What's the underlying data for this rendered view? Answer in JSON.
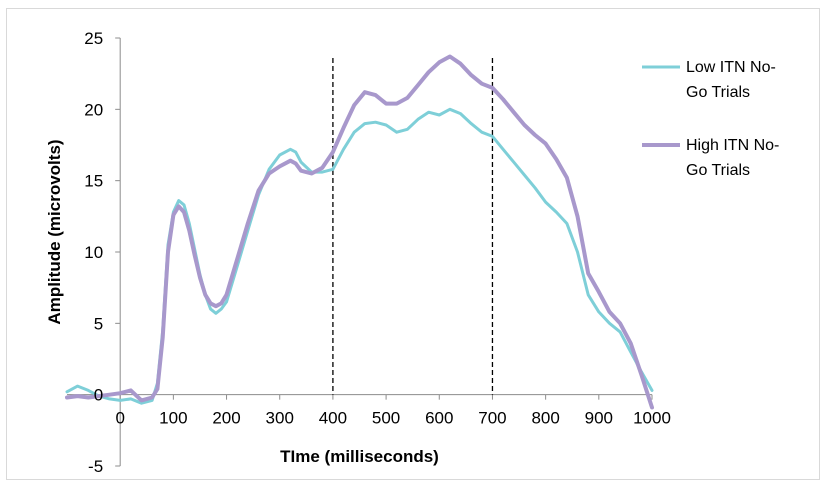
{
  "chart_data": {
    "type": "line",
    "title": "",
    "xlabel": "TIme (milliseconds)",
    "ylabel": "Amplitude (microvolts)",
    "xlim": [
      -100,
      1000
    ],
    "ylim": [
      -5,
      25
    ],
    "x_ticks": [
      0,
      100,
      200,
      300,
      400,
      500,
      600,
      700,
      800,
      900,
      1000
    ],
    "y_ticks": [
      -5,
      0,
      5,
      10,
      15,
      20,
      25
    ],
    "grid": false,
    "legend_position": "right",
    "vertical_markers": [
      400,
      700
    ],
    "series": [
      {
        "name": "Low ITN No-Go Trials",
        "color": "#7ecfd8",
        "x": [
          -100,
          -80,
          -60,
          -40,
          -20,
          0,
          20,
          40,
          60,
          70,
          80,
          90,
          100,
          110,
          120,
          130,
          140,
          150,
          160,
          170,
          180,
          190,
          200,
          220,
          240,
          260,
          280,
          300,
          320,
          330,
          340,
          360,
          380,
          400,
          420,
          440,
          460,
          480,
          500,
          520,
          540,
          560,
          580,
          600,
          620,
          640,
          660,
          680,
          700,
          720,
          740,
          760,
          780,
          800,
          820,
          840,
          860,
          880,
          900,
          920,
          940,
          960,
          980,
          1000
        ],
        "values": [
          0.2,
          0.6,
          0.3,
          -0.1,
          -0.3,
          -0.4,
          -0.3,
          -0.6,
          -0.4,
          0.8,
          4.5,
          10.5,
          12.8,
          13.6,
          13.3,
          12.0,
          10.2,
          8.4,
          7.0,
          6.0,
          5.7,
          6.0,
          6.5,
          9.0,
          11.5,
          14.0,
          15.8,
          16.8,
          17.2,
          17.0,
          16.3,
          15.6,
          15.6,
          15.8,
          17.2,
          18.4,
          19.0,
          19.1,
          18.9,
          18.4,
          18.6,
          19.3,
          19.8,
          19.6,
          20.0,
          19.7,
          19.0,
          18.4,
          18.1,
          17.2,
          16.3,
          15.4,
          14.5,
          13.5,
          12.8,
          12.0,
          10.0,
          7.0,
          5.8,
          5.0,
          4.4,
          3.0,
          1.6,
          0.3
        ]
      },
      {
        "name": "High ITN No-Go Trials",
        "color": "#a898cc",
        "x": [
          -100,
          -80,
          -60,
          -40,
          -20,
          0,
          20,
          40,
          60,
          70,
          80,
          90,
          100,
          110,
          120,
          130,
          140,
          150,
          160,
          170,
          180,
          190,
          200,
          220,
          240,
          260,
          280,
          300,
          320,
          330,
          340,
          360,
          380,
          400,
          420,
          440,
          460,
          480,
          500,
          520,
          540,
          560,
          580,
          600,
          620,
          640,
          660,
          680,
          700,
          720,
          740,
          760,
          780,
          800,
          820,
          840,
          860,
          880,
          900,
          920,
          940,
          960,
          980,
          1000
        ],
        "values": [
          -0.2,
          -0.1,
          -0.2,
          -0.1,
          0.0,
          0.1,
          0.3,
          -0.4,
          -0.2,
          0.4,
          4.0,
          10.0,
          12.6,
          13.2,
          12.8,
          11.5,
          9.8,
          8.2,
          7.0,
          6.4,
          6.2,
          6.4,
          7.0,
          9.5,
          12.0,
          14.3,
          15.5,
          16.0,
          16.4,
          16.2,
          15.7,
          15.5,
          15.9,
          17.0,
          18.7,
          20.3,
          21.2,
          21.0,
          20.4,
          20.4,
          20.8,
          21.7,
          22.6,
          23.3,
          23.7,
          23.2,
          22.4,
          21.8,
          21.5,
          20.7,
          19.8,
          18.9,
          18.2,
          17.6,
          16.5,
          15.2,
          12.5,
          8.5,
          7.2,
          5.8,
          5.0,
          3.6,
          1.4,
          -0.9
        ]
      }
    ]
  }
}
